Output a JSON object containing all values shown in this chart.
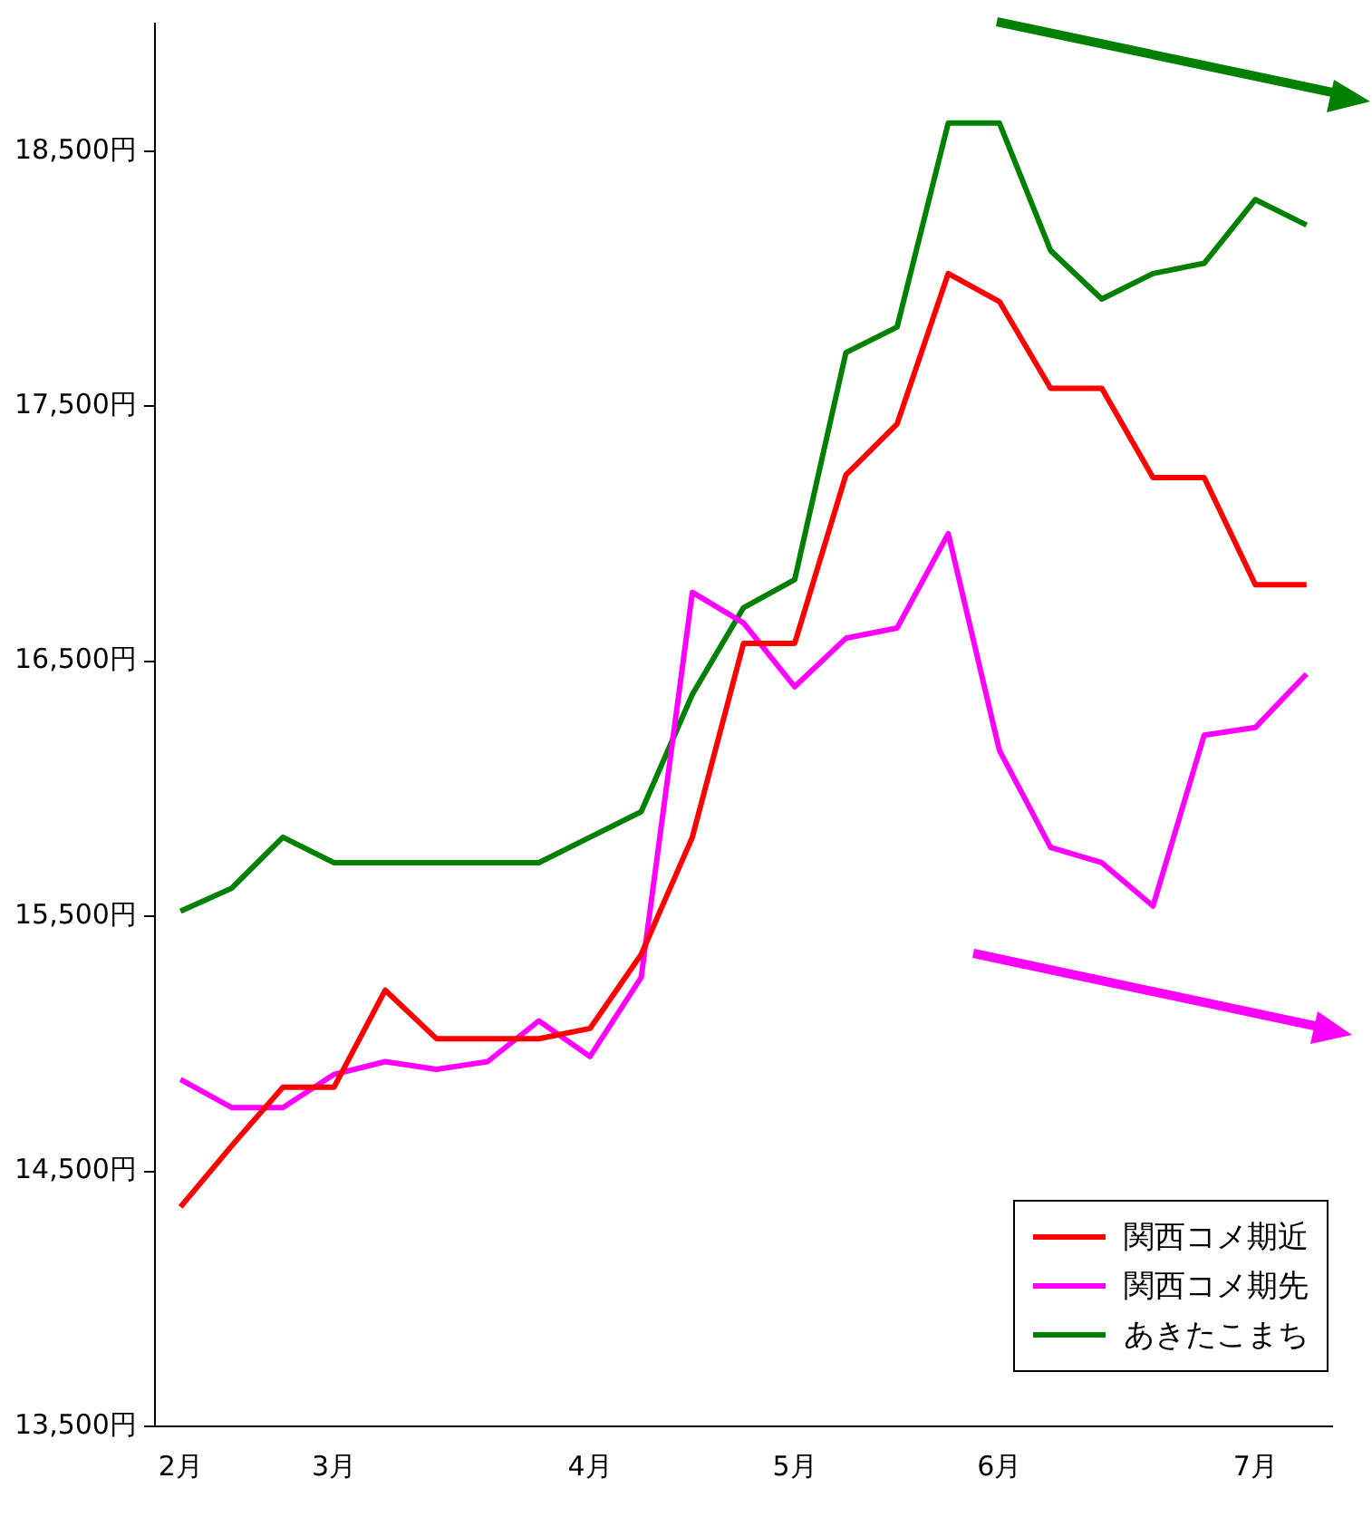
{
  "chart_data": {
    "type": "line",
    "categories": [
      "2月",
      null,
      null,
      "3月",
      null,
      null,
      null,
      null,
      "4月",
      null,
      null,
      null,
      "5月",
      null,
      null,
      null,
      "6月",
      null,
      null,
      null,
      null,
      "7月",
      null
    ],
    "series": [
      {
        "name": "関西コメ期近",
        "color": "#ff0000",
        "values": [
          14360,
          14600,
          14830,
          14830,
          15210,
          15020,
          15020,
          15020,
          15060,
          15350,
          15810,
          16570,
          16570,
          17230,
          17430,
          18020,
          17910,
          17570,
          17570,
          17220,
          17220,
          16800,
          16800
        ]
      },
      {
        "name": "関西コメ期先",
        "color": "#ff00ff",
        "values": [
          14860,
          14750,
          14750,
          14880,
          14930,
          14900,
          14930,
          15090,
          14950,
          15260,
          16770,
          16650,
          16400,
          16590,
          16630,
          17000,
          16150,
          15770,
          15710,
          15540,
          16210,
          16240,
          16450
        ]
      },
      {
        "name": "あきたこまち",
        "color": "#008000",
        "values": [
          15520,
          15610,
          15810,
          15710,
          15710,
          15710,
          15710,
          15710,
          15810,
          15910,
          16370,
          16710,
          16820,
          17710,
          17810,
          18610,
          18610,
          18110,
          17920,
          18020,
          18060,
          18310,
          18210
        ]
      }
    ],
    "ylim": [
      13500,
      19000
    ],
    "yticks": [
      {
        "value": 13500,
        "label": "13,500円"
      },
      {
        "value": 14500,
        "label": "14,500円"
      },
      {
        "value": 15500,
        "label": "15,500円"
      },
      {
        "value": 16500,
        "label": "16,500円"
      },
      {
        "value": 17500,
        "label": "17,500円"
      },
      {
        "value": 18500,
        "label": "18,500円"
      }
    ],
    "grid": false,
    "legend": "bottom right",
    "marker": "none",
    "line_style": "solid"
  }
}
